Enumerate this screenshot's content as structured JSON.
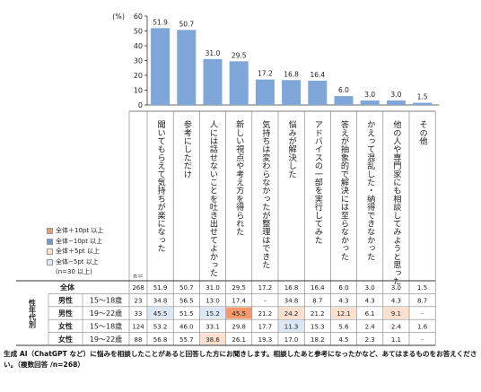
{
  "chart_data": {
    "type": "bar",
    "y_unit": "(%)",
    "ylim": [
      0,
      60
    ],
    "yticks": [
      0,
      10,
      20,
      30,
      40,
      50,
      60
    ],
    "categories": [
      "聞いてもらえて気持ちが楽になった",
      "参考にしただけ",
      "人には話せないことを吐き出せてよかった",
      "新しい視点や考え方を得られた",
      "気持ちは変わらなかったが整理はできた",
      "悩みが解決した",
      "アドバイスの一部を実行してみた",
      "答えが抽象的で解決には至らなかった",
      "かえって混乱した・納得できなかった",
      "他の人や専門家にも相談してみようと思った",
      "その他"
    ],
    "values": [
      51.9,
      50.7,
      31.0,
      29.5,
      17.2,
      16.8,
      16.4,
      6.0,
      3.0,
      3.0,
      1.5
    ],
    "bar_color": "#7ea6d8",
    "value_labels": [
      "51.9",
      "50.7",
      "31.0",
      "29.5",
      "17.2",
      "16.8",
      "16.4",
      "6.0",
      "3.0",
      "3.0",
      "1.5"
    ],
    "table": {
      "n_header": "n＝",
      "group_label": "性年代別",
      "rows": [
        {
          "label": "全体",
          "age": "",
          "n": "268",
          "values": [
            "51.9",
            "50.7",
            "31.0",
            "29.5",
            "17.2",
            "16.8",
            "16.4",
            "6.0",
            "3.0",
            "3.0",
            "1.5"
          ],
          "hl": [
            0,
            0,
            0,
            0,
            0,
            0,
            0,
            0,
            0,
            0,
            0
          ]
        },
        {
          "label": "男性",
          "age": "15～18歳",
          "n": "23",
          "values": [
            "34.8",
            "56.5",
            "13.0",
            "17.4",
            "-",
            "34.8",
            "8.7",
            "4.3",
            "4.3",
            "4.3",
            "8.7"
          ],
          "hl": [
            0,
            0,
            0,
            0,
            0,
            0,
            0,
            0,
            0,
            0,
            0
          ]
        },
        {
          "label": "男性",
          "age": "19～22歳",
          "n": "33",
          "values": [
            "45.5",
            "51.5",
            "15.2",
            "45.5",
            "21.2",
            "24.2",
            "21.2",
            "12.1",
            "6.1",
            "9.1",
            "-"
          ],
          "hl": [
            4,
            0,
            4,
            1,
            0,
            3,
            0,
            3,
            0,
            3,
            0
          ]
        },
        {
          "label": "女性",
          "age": "15～18歳",
          "n": "124",
          "values": [
            "53.2",
            "46.0",
            "33.1",
            "29.8",
            "17.7",
            "11.3",
            "15.3",
            "5.6",
            "2.4",
            "2.4",
            "1.6"
          ],
          "hl": [
            0,
            0,
            0,
            0,
            0,
            4,
            0,
            0,
            0,
            0,
            0
          ]
        },
        {
          "label": "女性",
          "age": "19～22歳",
          "n": "88",
          "values": [
            "56.8",
            "55.7",
            "38.6",
            "26.1",
            "19.3",
            "17.0",
            "18.2",
            "4.5",
            "2.3",
            "1.1",
            "-"
          ],
          "hl": [
            0,
            0,
            3,
            0,
            0,
            0,
            0,
            0,
            0,
            0,
            0
          ]
        }
      ]
    },
    "legend": [
      {
        "label": "全体＋10pt 以上",
        "color": "#f29a6e"
      },
      {
        "label": "全体−10pt 以上",
        "color": "#6f9bd6"
      },
      {
        "label": "全体＋5pt 以上",
        "color": "#fbe0cf"
      },
      {
        "label": "全体−5pt 以上",
        "color": "#dce7f5"
      },
      {
        "label": "(n=30 以上)",
        "color": ""
      }
    ]
  },
  "footnote": "生成 AI（ChatGPT など）に悩みを相談したことがあると回答した方にお聞きします。相談したあと参考になったかなど、あてはまるものをお答えください。（複数回答 /n=268）"
}
